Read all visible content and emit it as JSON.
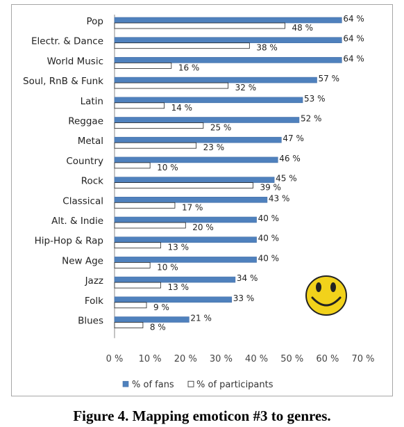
{
  "chart_data": {
    "type": "bar",
    "orientation": "horizontal",
    "categories": [
      "Pop",
      "Electr. & Dance",
      "World Music",
      "Soul, RnB & Funk",
      "Latin",
      "Reggae",
      "Metal",
      "Country",
      "Rock",
      "Classical",
      "Alt. & Indie",
      "Hip-Hop & Rap",
      "New Age",
      "Jazz",
      "Folk",
      "Blues"
    ],
    "series": [
      {
        "name": "% of fans",
        "values": [
          64,
          64,
          64,
          57,
          53,
          52,
          47,
          46,
          45,
          43,
          40,
          40,
          40,
          34,
          33,
          21
        ],
        "labels": [
          "64 %",
          "64 %",
          "64 %",
          "57 %",
          "53 %",
          "52 %",
          "47 %",
          "46 %",
          "45 %",
          "43 %",
          "40 %",
          "40 %",
          "40 %",
          "34 %",
          "33 %",
          "21 %"
        ],
        "color": "#4f81bd"
      },
      {
        "name": "% of participants",
        "values": [
          48,
          38,
          16,
          32,
          14,
          25,
          23,
          10,
          39,
          17,
          20,
          13,
          10,
          13,
          9,
          8
        ],
        "labels": [
          "48 %",
          "38 %",
          "16 %",
          "32 %",
          "14 %",
          "25 %",
          "23 %",
          "10 %",
          "39 %",
          "17 %",
          "20 %",
          "13 %",
          "10 %",
          "13 %",
          "9 %",
          "8 %"
        ],
        "color": "#ffffff"
      }
    ],
    "xlim": [
      0,
      70
    ],
    "xticks": [
      0,
      10,
      20,
      30,
      40,
      50,
      60,
      70
    ],
    "xtick_labels": [
      "0 %",
      "10 %",
      "20 %",
      "30 %",
      "40 %",
      "50 %",
      "60 %",
      "70 %"
    ],
    "grid": false,
    "legend_position": "bottom",
    "decoration": "smiley-emoticon"
  },
  "caption": "Figure 4. Mapping emoticon #3 to genres."
}
